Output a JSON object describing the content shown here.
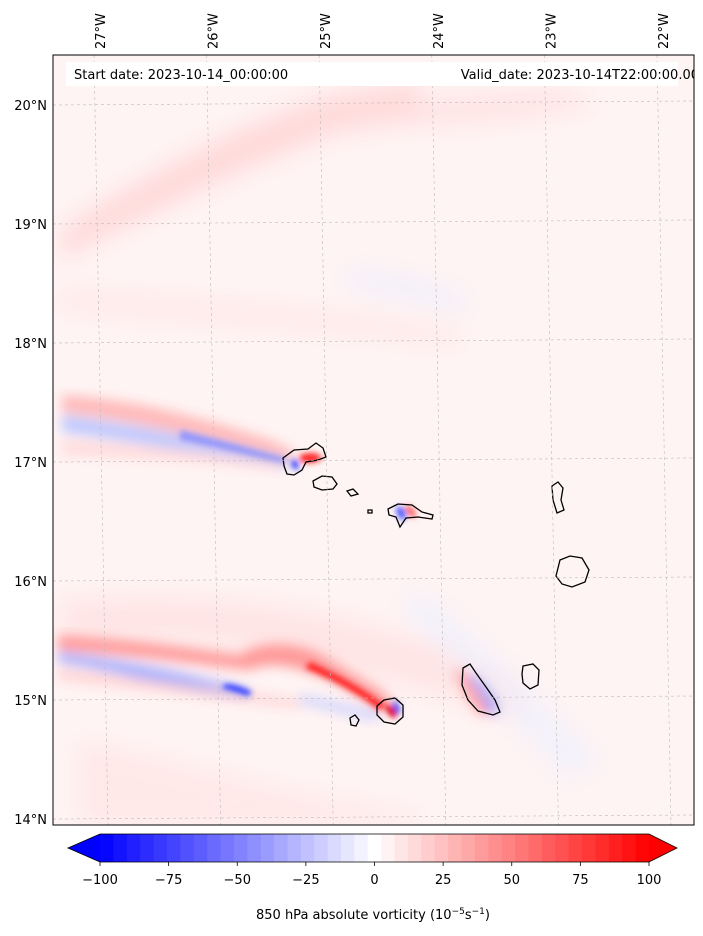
{
  "map": {
    "start_date": "Start date: 2023-10-14_00:00:00",
    "valid_date": "Valid_date: 2023-10-14T22:00:00.00",
    "lon_ticks": [
      {
        "value": -27,
        "label": "27°W"
      },
      {
        "value": -26,
        "label": "26°W"
      },
      {
        "value": -25,
        "label": "25°W"
      },
      {
        "value": -24,
        "label": "24°W"
      },
      {
        "value": -23,
        "label": "23°W"
      },
      {
        "value": -22,
        "label": "22°W"
      }
    ],
    "lat_ticks": [
      {
        "value": 20,
        "label": "20°N"
      },
      {
        "value": 19,
        "label": "19°N"
      },
      {
        "value": 18,
        "label": "18°N"
      },
      {
        "value": 17,
        "label": "17°N"
      },
      {
        "value": 16,
        "label": "16°N"
      },
      {
        "value": 15,
        "label": "15°N"
      },
      {
        "value": 14,
        "label": "14°N"
      }
    ],
    "colors": {
      "positive": "#ff0000",
      "negative": "#0000ff",
      "coast": "#000000",
      "grid": "#bbbbbb"
    }
  },
  "colorbar": {
    "label": "850 hPa absolute vorticity (10",
    "label_exp1": "−5",
    "label_mid": "s",
    "label_exp2": "−1",
    "label_end": ")",
    "min": -100,
    "max": 100,
    "levels": 41,
    "extend": "both",
    "ticks": [
      {
        "value": -100,
        "label": "−100"
      },
      {
        "value": -75,
        "label": "−75"
      },
      {
        "value": -50,
        "label": "−50"
      },
      {
        "value": -25,
        "label": "−25"
      },
      {
        "value": 0,
        "label": "0"
      },
      {
        "value": 25,
        "label": "25"
      },
      {
        "value": 50,
        "label": "50"
      },
      {
        "value": 75,
        "label": "75"
      },
      {
        "value": 100,
        "label": "100"
      }
    ]
  }
}
